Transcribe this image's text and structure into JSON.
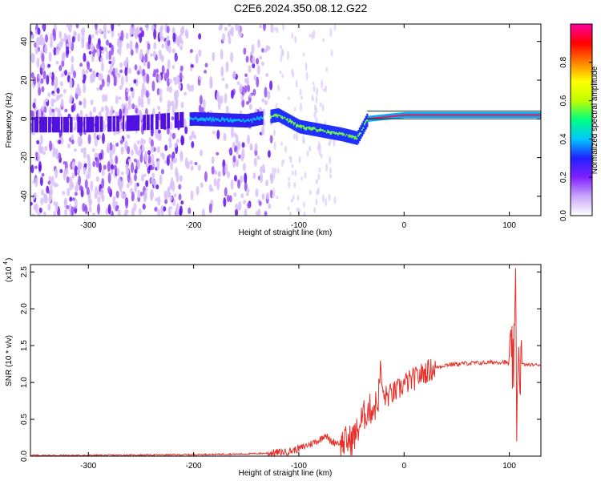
{
  "title": "C2E6.2024.350.08.12.G22",
  "chart_data": [
    {
      "type": "heatmap",
      "xlabel": "Height of straight line (km)",
      "ylabel": "Frequency (Hz)",
      "xlim": [
        -355,
        130
      ],
      "ylim": [
        -50,
        49
      ],
      "xticks": [
        -300,
        -200,
        -100,
        0,
        100
      ],
      "yticks": [
        -40,
        -20,
        0,
        20,
        40
      ],
      "colorbar": {
        "label": "Normalized spectral amplitude",
        "range": [
          0.0,
          1.0
        ],
        "ticks": [
          "0.0",
          "0.2",
          "0.4",
          "0.6",
          "0.8"
        ],
        "colors": [
          "#ffffff",
          "#c8a8f8",
          "#8020ff",
          "#2020ff",
          "#00c8ff",
          "#00ff80",
          "#c0ff00",
          "#ffff00",
          "#ff8000",
          "#ff0000",
          "#ff00a0"
        ]
      },
      "ridge": {
        "x": [
          -350,
          -300,
          -250,
          -200,
          -150,
          -120,
          -100,
          -80,
          -60,
          -45,
          -35,
          0,
          50,
          90,
          110,
          130
        ],
        "y": [
          -3,
          -3,
          -2,
          0,
          -1,
          2,
          -4,
          -6,
          -8,
          -10,
          0,
          2,
          2,
          2,
          2,
          2
        ]
      }
    },
    {
      "type": "line",
      "xlabel": "Height of straight line (km)",
      "ylabel": "SNR (10 * v/v)",
      "y_multiplier": "(x10",
      "y_multiplier_exp": "4",
      "xlim": [
        -355,
        130
      ],
      "ylim": [
        0,
        2.6
      ],
      "xticks": [
        -300,
        -200,
        -100,
        0,
        100
      ],
      "yticks": [
        0.0,
        0.5,
        1.0,
        1.5,
        2.0,
        2.5
      ],
      "series": [
        {
          "color": "#e8302a",
          "x": [
            -355,
            -300,
            -250,
            -200,
            -150,
            -130,
            -110,
            -100,
            -90,
            -80,
            -75,
            -70,
            -60,
            -50,
            -45,
            -40,
            -35,
            -30,
            -25,
            -22,
            -20,
            -15,
            -10,
            -5,
            0,
            10,
            20,
            30,
            40,
            60,
            80,
            95,
            100,
            105,
            106,
            107,
            108,
            110,
            115,
            120,
            130
          ],
          "y": [
            0.01,
            0.01,
            0.015,
            0.02,
            0.03,
            0.04,
            0.06,
            0.1,
            0.16,
            0.22,
            0.3,
            0.2,
            0.18,
            0.22,
            0.32,
            0.5,
            0.62,
            0.65,
            0.72,
            1.2,
            0.8,
            0.82,
            0.86,
            0.9,
            0.98,
            1.05,
            1.14,
            1.2,
            1.24,
            1.26,
            1.27,
            1.28,
            1.25,
            1.3,
            2.55,
            0.2,
            1.45,
            1.26,
            1.24,
            1.24,
            1.24
          ]
        }
      ]
    }
  ]
}
